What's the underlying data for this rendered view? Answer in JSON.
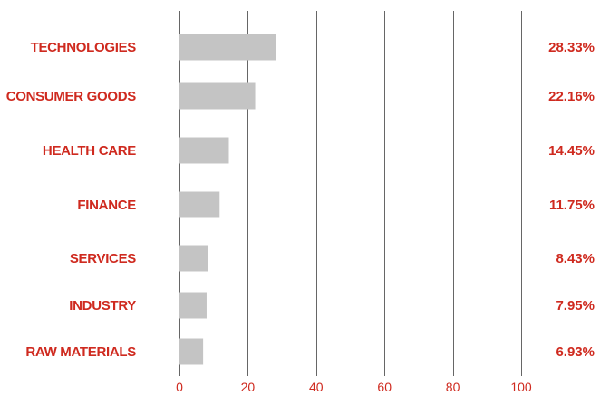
{
  "chart_data": {
    "type": "bar",
    "orientation": "horizontal",
    "categories": [
      "TECHNOLOGIES",
      "CONSUMER GOODS",
      "HEALTH CARE",
      "FINANCE",
      "SERVICES",
      "INDUSTRY",
      "RAW MATERIALS"
    ],
    "values": [
      28.33,
      22.16,
      14.45,
      11.75,
      8.43,
      7.95,
      6.93
    ],
    "value_labels": [
      "28.33%",
      "22.16%",
      "14.45%",
      "11.75%",
      "8.43%",
      "7.95%",
      "6.93%"
    ],
    "xlim": [
      0,
      100
    ],
    "xticks": [
      0,
      20,
      40,
      60,
      80,
      100
    ],
    "grid": true,
    "title": "",
    "xlabel": "",
    "ylabel": ""
  },
  "colors": {
    "bar": "#c4c4c4",
    "label": "#cf2a1f",
    "grid": "#666666",
    "tick": "#cf2a1f"
  }
}
